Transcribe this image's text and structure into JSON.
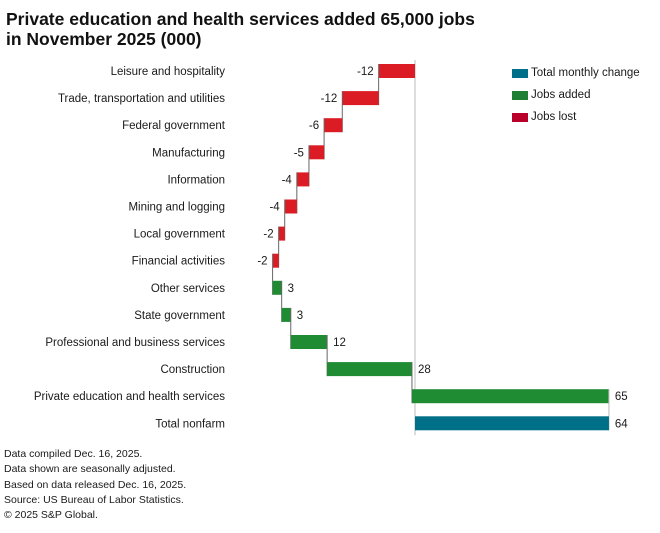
{
  "title_lines": [
    "Private education and health services added 65,000 jobs",
    "in November 2025 (000)"
  ],
  "legend": [
    {
      "label": "Total monthly change",
      "color": "#00708a"
    },
    {
      "label": "Jobs added",
      "color": "#1f7f34"
    },
    {
      "label": "Jobs lost",
      "color": "#b8002b"
    }
  ],
  "colors": {
    "added": "#1f8c34",
    "lost": "#dc1c24",
    "total": "#006f88",
    "connector": "#666666",
    "axis": "#bbbbbb"
  },
  "footnotes": [
    "Data compiled Dec. 16, 2025.",
    "Data shown are seasonally adjusted.",
    "Based on data released Dec. 16, 2025.",
    "Source: US Bureau of Labor Statistics.",
    "© 2025 S&P Global."
  ],
  "chart_data": {
    "type": "bar",
    "subtype": "waterfall",
    "orientation": "horizontal",
    "title": "Private education and health services added 65,000 jobs in November 2025 (000)",
    "xlabel": "",
    "ylabel": "",
    "grid": false,
    "legend_position": "top-right",
    "categories": [
      "Leisure and hospitality",
      "Trade, transportation and utilities",
      "Federal government",
      "Manufacturing",
      "Information",
      "Mining and logging",
      "Local government",
      "Financial activities",
      "Other services",
      "State government",
      "Professional and business services",
      "Construction",
      "Private education and health services",
      "Total nonfarm"
    ],
    "values": [
      -12,
      -12,
      -6,
      -5,
      -4,
      -4,
      -2,
      -2,
      3,
      3,
      12,
      28,
      65,
      64
    ],
    "labels": [
      "-12",
      "-12",
      "-6",
      "-5",
      "-4",
      "-4",
      "-2",
      "-2",
      "3",
      "3",
      "12",
      "28",
      "65",
      "64"
    ],
    "kinds": [
      "lost",
      "lost",
      "lost",
      "lost",
      "lost",
      "lost",
      "lost",
      "lost",
      "added",
      "added",
      "added",
      "added",
      "added",
      "total"
    ],
    "xlim": [
      -47,
      65
    ]
  }
}
